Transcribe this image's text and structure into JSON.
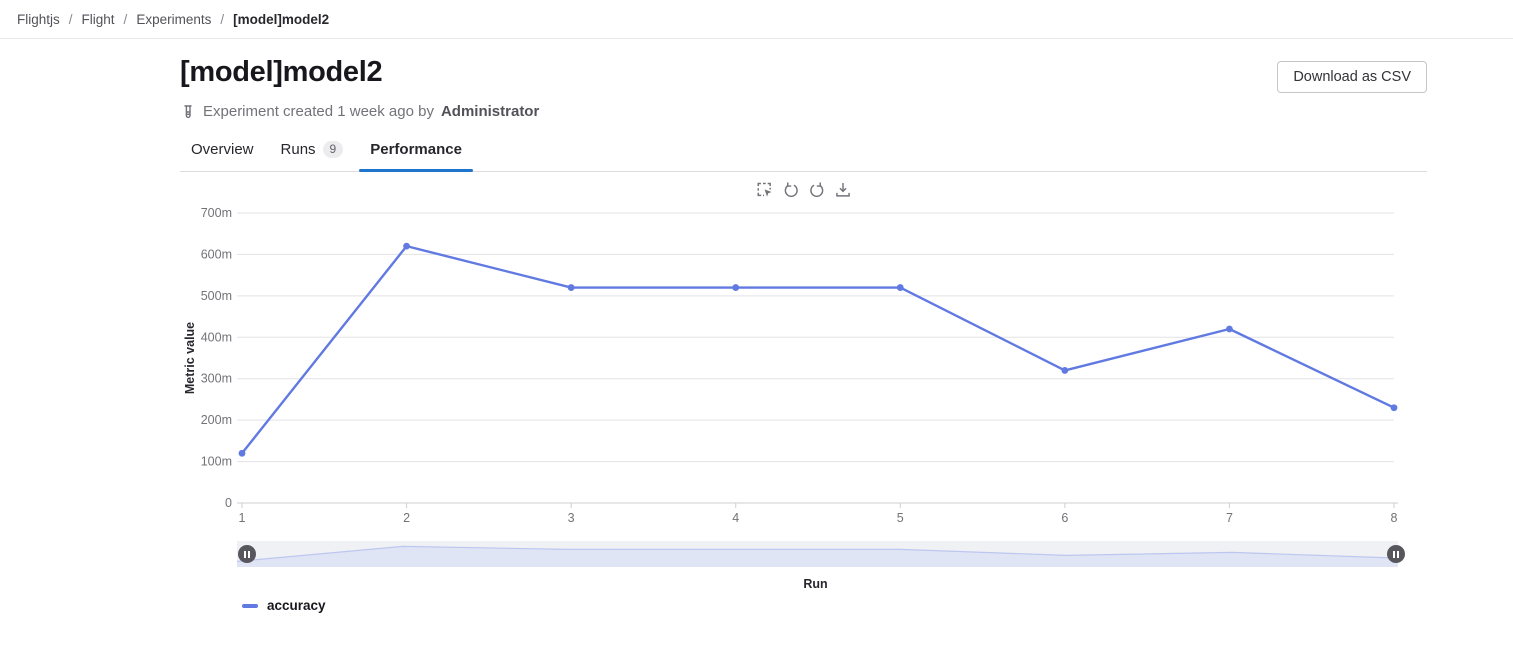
{
  "breadcrumb": {
    "separator": "/",
    "items": [
      "Flightjs",
      "Flight",
      "Experiments",
      "[model]model2"
    ]
  },
  "header": {
    "title": "[model]model2",
    "download_button": "Download as CSV",
    "meta_prefix": "Experiment created 1 week ago by",
    "meta_author": "Administrator"
  },
  "tabs": [
    {
      "label": "Overview",
      "active": false
    },
    {
      "label": "Runs",
      "badge": "9",
      "active": false
    },
    {
      "label": "Performance",
      "active": true
    }
  ],
  "chart_toolbar_icons": [
    "zoom-select-icon",
    "restore-ccw-icon",
    "refresh-cw-icon",
    "download-icon"
  ],
  "colors": {
    "accent": "#1f75cb",
    "line": "#617ae2",
    "slider_fill": "#e0e5f6",
    "slider_stroke": "#bcc7ef",
    "grid": "#e3e3e6",
    "axis": "#cfcfd4"
  },
  "chart_data": {
    "type": "line",
    "title": "",
    "xlabel": "Run",
    "ylabel": "Metric value",
    "x": [
      1,
      2,
      3,
      4,
      5,
      6,
      7,
      8
    ],
    "x_ticks": [
      "1",
      "2",
      "3",
      "4",
      "5",
      "6",
      "7",
      "8"
    ],
    "y_ticks": [
      "0",
      "100m",
      "200m",
      "300m",
      "400m",
      "500m",
      "600m",
      "700m"
    ],
    "ylim_milli": [
      0,
      700
    ],
    "grid": "horizontal",
    "legend_position": "bottom-left",
    "series": [
      {
        "name": "accuracy",
        "values": [
          0.12,
          0.62,
          0.52,
          0.52,
          0.52,
          0.32,
          0.42,
          0.23
        ],
        "values_milli": [
          120,
          620,
          520,
          520,
          520,
          320,
          420,
          230
        ]
      }
    ],
    "range_slider": {
      "present": true,
      "handles": [
        "left",
        "right"
      ]
    }
  }
}
